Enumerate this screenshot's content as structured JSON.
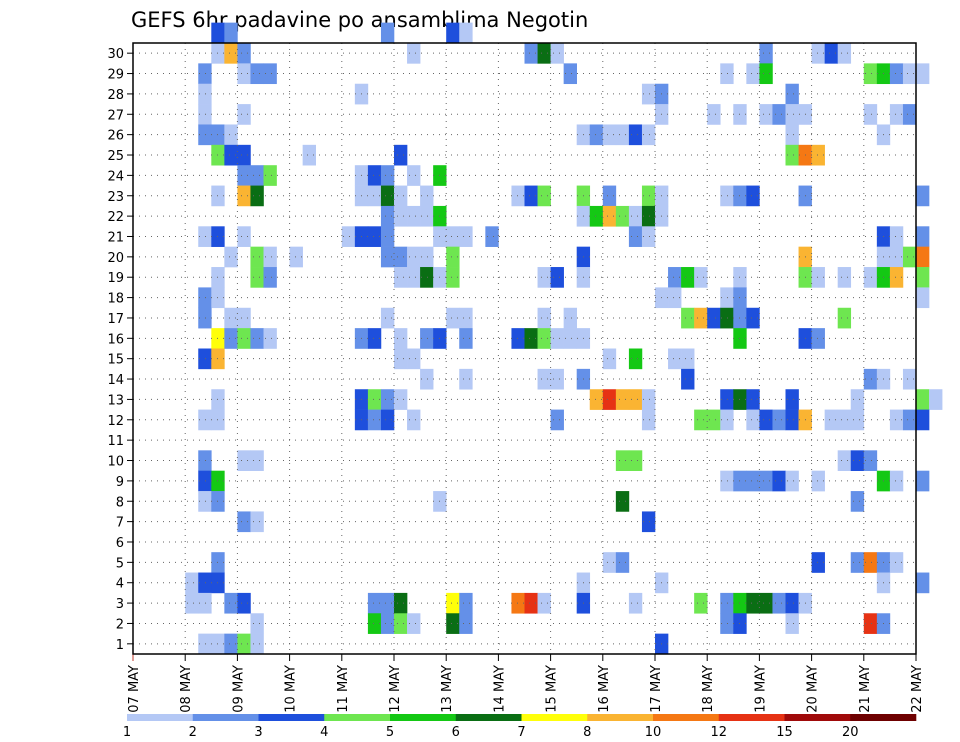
{
  "chart_data": {
    "type": "heatmap",
    "title": "GEFS 6hr padavine po ansamblima Negotin",
    "xlabel": "",
    "ylabel": "",
    "x_tick_labels": [
      "07 MAY",
      "08 MAY",
      "09 MAY",
      "10 MAY",
      "11 MAY",
      "12 MAY",
      "13 MAY",
      "14 MAY",
      "15 MAY",
      "16 MAY",
      "17 MAY",
      "18 MAY",
      "19 MAY",
      "20 MAY",
      "21 MAY",
      "22 MAY"
    ],
    "y_tick_labels": [
      "1",
      "2",
      "3",
      "4",
      "5",
      "6",
      "7",
      "8",
      "9",
      "10",
      "11",
      "12",
      "13",
      "14",
      "15",
      "16",
      "17",
      "18",
      "19",
      "20",
      "21",
      "22",
      "23",
      "24",
      "25",
      "26",
      "27",
      "28",
      "29",
      "30"
    ],
    "ylim": [
      0,
      30
    ],
    "xlim_steps": [
      0,
      60
    ],
    "steps_per_day": 4,
    "grid": true,
    "legend_placement": "bottom",
    "legend": {
      "labels": [
        "1",
        "2",
        "3",
        "4",
        "5",
        "6",
        "7",
        "8",
        "10",
        "12",
        "15",
        "20"
      ],
      "colors": [
        "#b4c8f5",
        "#6490e8",
        "#1e4fdc",
        "#6ee650",
        "#14c814",
        "#0a6e14",
        "#ffff0a",
        "#fab432",
        "#f57814",
        "#e63214",
        "#a00a0a",
        "#6e0000"
      ]
    },
    "color_bins": [
      {
        "min": 1,
        "max": 2,
        "color": "#b4c8f5"
      },
      {
        "min": 2,
        "max": 3,
        "color": "#6490e8"
      },
      {
        "min": 3,
        "max": 4,
        "color": "#1e4fdc"
      },
      {
        "min": 4,
        "max": 5,
        "color": "#6ee650"
      },
      {
        "min": 5,
        "max": 6,
        "color": "#14c814"
      },
      {
        "min": 6,
        "max": 7,
        "color": "#0a6e14"
      },
      {
        "min": 7,
        "max": 8,
        "color": "#ffff0a"
      },
      {
        "min": 8,
        "max": 10,
        "color": "#fab432"
      },
      {
        "min": 10,
        "max": 12,
        "color": "#f57814"
      },
      {
        "min": 12,
        "max": 15,
        "color": "#e63214"
      },
      {
        "min": 15,
        "max": 20,
        "color": "#a00a0a"
      },
      {
        "min": 20,
        "max": 30,
        "color": "#6e0000"
      }
    ],
    "cells": [
      [
        6,
        30,
        3
      ],
      [
        7,
        30,
        2
      ],
      [
        19,
        30,
        2
      ],
      [
        24,
        30,
        3
      ],
      [
        25,
        30,
        1
      ],
      [
        6,
        29,
        1
      ],
      [
        7,
        29,
        8
      ],
      [
        8,
        29,
        2
      ],
      [
        21,
        29,
        1
      ],
      [
        30,
        29,
        2
      ],
      [
        31,
        29,
        6
      ],
      [
        32,
        29,
        1
      ],
      [
        48,
        29,
        2
      ],
      [
        52,
        29,
        1
      ],
      [
        53,
        29,
        3
      ],
      [
        54,
        29,
        1
      ],
      [
        5,
        28,
        2
      ],
      [
        8,
        28,
        1
      ],
      [
        9,
        28,
        2
      ],
      [
        10,
        28,
        2
      ],
      [
        33,
        28,
        2
      ],
      [
        45,
        28,
        1
      ],
      [
        47,
        28,
        1
      ],
      [
        48,
        28,
        5
      ],
      [
        56,
        28,
        4
      ],
      [
        57,
        28,
        5
      ],
      [
        58,
        28,
        2
      ],
      [
        59,
        28,
        1
      ],
      [
        60,
        28,
        1
      ],
      [
        5,
        27,
        1
      ],
      [
        17,
        27,
        1
      ],
      [
        39,
        27,
        1
      ],
      [
        40,
        27,
        2
      ],
      [
        50,
        27,
        2
      ],
      [
        5,
        26,
        1
      ],
      [
        8,
        26,
        1
      ],
      [
        40,
        26,
        1
      ],
      [
        44,
        26,
        1
      ],
      [
        46,
        26,
        1
      ],
      [
        48,
        26,
        1
      ],
      [
        49,
        26,
        2
      ],
      [
        50,
        26,
        1
      ],
      [
        51,
        26,
        1
      ],
      [
        56,
        26,
        1
      ],
      [
        58,
        26,
        1
      ],
      [
        59,
        26,
        2
      ],
      [
        5,
        25,
        2
      ],
      [
        6,
        25,
        2
      ],
      [
        7,
        25,
        1
      ],
      [
        34,
        25,
        1
      ],
      [
        35,
        25,
        2
      ],
      [
        36,
        25,
        1
      ],
      [
        37,
        25,
        1
      ],
      [
        38,
        25,
        3
      ],
      [
        39,
        25,
        1
      ],
      [
        50,
        25,
        1
      ],
      [
        57,
        25,
        1
      ],
      [
        6,
        24,
        4
      ],
      [
        7,
        24,
        3
      ],
      [
        8,
        24,
        3
      ],
      [
        13,
        24,
        1
      ],
      [
        20,
        24,
        3
      ],
      [
        50,
        24,
        4
      ],
      [
        51,
        24,
        11
      ],
      [
        52,
        24,
        8
      ],
      [
        8,
        23,
        2
      ],
      [
        9,
        23,
        2
      ],
      [
        10,
        23,
        4
      ],
      [
        17,
        23,
        1
      ],
      [
        18,
        23,
        3
      ],
      [
        19,
        23,
        2
      ],
      [
        21,
        23,
        1
      ],
      [
        23,
        23,
        5
      ],
      [
        6,
        22,
        1
      ],
      [
        8,
        22,
        8
      ],
      [
        9,
        22,
        6
      ],
      [
        17,
        22,
        1
      ],
      [
        18,
        22,
        1
      ],
      [
        19,
        22,
        6
      ],
      [
        20,
        22,
        1
      ],
      [
        22,
        22,
        1
      ],
      [
        29,
        22,
        1
      ],
      [
        30,
        22,
        3
      ],
      [
        31,
        22,
        4
      ],
      [
        34,
        22,
        4
      ],
      [
        36,
        22,
        2
      ],
      [
        39,
        22,
        4
      ],
      [
        40,
        22,
        1
      ],
      [
        45,
        22,
        1
      ],
      [
        46,
        22,
        2
      ],
      [
        47,
        22,
        3
      ],
      [
        51,
        22,
        2
      ],
      [
        60,
        22,
        2
      ],
      [
        19,
        21,
        2
      ],
      [
        20,
        21,
        1
      ],
      [
        21,
        21,
        1
      ],
      [
        22,
        21,
        1
      ],
      [
        23,
        21,
        5
      ],
      [
        34,
        21,
        1
      ],
      [
        35,
        21,
        5
      ],
      [
        36,
        21,
        9
      ],
      [
        37,
        21,
        4
      ],
      [
        38,
        21,
        1
      ],
      [
        39,
        21,
        6
      ],
      [
        40,
        21,
        1
      ],
      [
        5,
        20,
        1
      ],
      [
        6,
        20,
        3
      ],
      [
        8,
        20,
        1
      ],
      [
        16,
        20,
        1
      ],
      [
        17,
        20,
        3
      ],
      [
        18,
        20,
        3
      ],
      [
        19,
        20,
        2
      ],
      [
        23,
        20,
        1
      ],
      [
        24,
        20,
        1
      ],
      [
        25,
        20,
        1
      ],
      [
        27,
        20,
        2
      ],
      [
        38,
        20,
        2
      ],
      [
        39,
        20,
        1
      ],
      [
        57,
        20,
        3
      ],
      [
        58,
        20,
        1
      ],
      [
        60,
        20,
        2
      ],
      [
        7,
        19,
        1
      ],
      [
        9,
        19,
        4
      ],
      [
        10,
        19,
        1
      ],
      [
        12,
        19,
        1
      ],
      [
        19,
        19,
        2
      ],
      [
        20,
        19,
        2
      ],
      [
        21,
        19,
        1
      ],
      [
        22,
        19,
        1
      ],
      [
        24,
        19,
        4
      ],
      [
        34,
        19,
        3
      ],
      [
        51,
        19,
        8
      ],
      [
        57,
        19,
        1
      ],
      [
        58,
        19,
        1
      ],
      [
        59,
        19,
        4
      ],
      [
        60,
        19,
        10
      ],
      [
        6,
        18,
        1
      ],
      [
        9,
        18,
        4
      ],
      [
        10,
        18,
        2
      ],
      [
        20,
        18,
        1
      ],
      [
        21,
        18,
        1
      ],
      [
        22,
        18,
        6
      ],
      [
        23,
        18,
        1
      ],
      [
        24,
        18,
        4
      ],
      [
        31,
        18,
        1
      ],
      [
        32,
        18,
        3
      ],
      [
        34,
        18,
        1
      ],
      [
        41,
        18,
        2
      ],
      [
        42,
        18,
        5
      ],
      [
        43,
        18,
        1
      ],
      [
        46,
        18,
        1
      ],
      [
        51,
        18,
        4
      ],
      [
        52,
        18,
        1
      ],
      [
        54,
        18,
        1
      ],
      [
        56,
        18,
        1
      ],
      [
        57,
        18,
        5
      ],
      [
        58,
        18,
        8
      ],
      [
        60,
        18,
        4
      ],
      [
        5,
        17,
        2
      ],
      [
        6,
        17,
        1
      ],
      [
        40,
        17,
        1
      ],
      [
        41,
        17,
        1
      ],
      [
        45,
        17,
        1
      ],
      [
        46,
        17,
        2
      ],
      [
        60,
        17,
        1
      ],
      [
        5,
        16,
        2
      ],
      [
        7,
        16,
        1
      ],
      [
        8,
        16,
        1
      ],
      [
        19,
        16,
        1
      ],
      [
        24,
        16,
        1
      ],
      [
        25,
        16,
        1
      ],
      [
        31,
        16,
        1
      ],
      [
        33,
        16,
        1
      ],
      [
        42,
        16,
        4
      ],
      [
        43,
        16,
        8
      ],
      [
        44,
        16,
        3
      ],
      [
        45,
        16,
        6
      ],
      [
        46,
        16,
        2
      ],
      [
        47,
        16,
        3
      ],
      [
        54,
        16,
        4
      ],
      [
        6,
        15,
        7
      ],
      [
        7,
        15,
        2
      ],
      [
        8,
        15,
        4
      ],
      [
        9,
        15,
        2
      ],
      [
        10,
        15,
        1
      ],
      [
        17,
        15,
        2
      ],
      [
        18,
        15,
        3
      ],
      [
        20,
        15,
        1
      ],
      [
        22,
        15,
        2
      ],
      [
        23,
        15,
        3
      ],
      [
        25,
        15,
        2
      ],
      [
        29,
        15,
        3
      ],
      [
        30,
        15,
        6
      ],
      [
        31,
        15,
        4
      ],
      [
        32,
        15,
        1
      ],
      [
        33,
        15,
        1
      ],
      [
        34,
        15,
        1
      ],
      [
        46,
        15,
        5
      ],
      [
        51,
        15,
        3
      ],
      [
        52,
        15,
        2
      ],
      [
        5,
        14,
        3
      ],
      [
        6,
        14,
        8
      ],
      [
        20,
        14,
        1
      ],
      [
        21,
        14,
        1
      ],
      [
        36,
        14,
        1
      ],
      [
        38,
        14,
        5
      ],
      [
        41,
        14,
        1
      ],
      [
        42,
        14,
        1
      ],
      [
        22,
        13,
        1
      ],
      [
        25,
        13,
        1
      ],
      [
        31,
        13,
        1
      ],
      [
        32,
        13,
        1
      ],
      [
        34,
        13,
        2
      ],
      [
        42,
        13,
        3
      ],
      [
        56,
        13,
        2
      ],
      [
        57,
        13,
        1
      ],
      [
        59,
        13,
        1
      ],
      [
        6,
        12,
        1
      ],
      [
        17,
        12,
        3
      ],
      [
        18,
        12,
        4
      ],
      [
        19,
        12,
        2
      ],
      [
        20,
        12,
        1
      ],
      [
        35,
        12,
        8
      ],
      [
        36,
        12,
        12
      ],
      [
        37,
        12,
        8
      ],
      [
        38,
        12,
        8
      ],
      [
        39,
        12,
        1
      ],
      [
        45,
        12,
        3
      ],
      [
        46,
        12,
        6
      ],
      [
        47,
        12,
        3
      ],
      [
        50,
        12,
        3
      ],
      [
        55,
        12,
        1
      ],
      [
        60,
        12,
        4
      ],
      [
        61,
        12,
        1
      ],
      [
        5,
        11,
        1
      ],
      [
        6,
        11,
        1
      ],
      [
        17,
        11,
        3
      ],
      [
        18,
        11,
        2
      ],
      [
        19,
        11,
        3
      ],
      [
        21,
        11,
        1
      ],
      [
        32,
        11,
        2
      ],
      [
        39,
        11,
        1
      ],
      [
        43,
        11,
        4
      ],
      [
        44,
        11,
        4
      ],
      [
        45,
        11,
        1
      ],
      [
        47,
        11,
        1
      ],
      [
        48,
        11,
        3
      ],
      [
        49,
        11,
        2
      ],
      [
        50,
        11,
        3
      ],
      [
        51,
        11,
        8
      ],
      [
        53,
        11,
        1
      ],
      [
        54,
        11,
        1
      ],
      [
        55,
        11,
        1
      ],
      [
        58,
        11,
        1
      ],
      [
        59,
        11,
        2
      ],
      [
        60,
        11,
        3
      ],
      [
        5,
        9,
        2
      ],
      [
        8,
        9,
        1
      ],
      [
        9,
        9,
        1
      ],
      [
        37,
        9,
        4
      ],
      [
        38,
        9,
        4
      ],
      [
        54,
        9,
        1
      ],
      [
        55,
        9,
        3
      ],
      [
        56,
        9,
        2
      ],
      [
        5,
        8,
        3
      ],
      [
        6,
        8,
        5
      ],
      [
        45,
        8,
        1
      ],
      [
        46,
        8,
        2
      ],
      [
        47,
        8,
        2
      ],
      [
        48,
        8,
        2
      ],
      [
        49,
        8,
        3
      ],
      [
        50,
        8,
        1
      ],
      [
        52,
        8,
        1
      ],
      [
        57,
        8,
        5
      ],
      [
        58,
        8,
        1
      ],
      [
        60,
        8,
        2
      ],
      [
        5,
        7,
        1
      ],
      [
        6,
        7,
        2
      ],
      [
        23,
        7,
        1
      ],
      [
        37,
        7,
        6
      ],
      [
        55,
        7,
        2
      ],
      [
        8,
        6,
        2
      ],
      [
        9,
        6,
        1
      ],
      [
        39,
        6,
        3
      ],
      [
        6,
        4,
        2
      ],
      [
        36,
        4,
        1
      ],
      [
        37,
        4,
        2
      ],
      [
        52,
        4,
        3
      ],
      [
        55,
        4,
        2
      ],
      [
        56,
        4,
        10
      ],
      [
        57,
        4,
        2
      ],
      [
        58,
        4,
        1
      ],
      [
        4,
        3,
        1
      ],
      [
        5,
        3,
        3
      ],
      [
        6,
        3,
        3
      ],
      [
        34,
        3,
        1
      ],
      [
        40,
        3,
        1
      ],
      [
        57,
        3,
        1
      ],
      [
        60,
        3,
        2
      ],
      [
        4,
        2,
        1
      ],
      [
        5,
        2,
        1
      ],
      [
        7,
        2,
        2
      ],
      [
        8,
        2,
        3
      ],
      [
        18,
        2,
        2
      ],
      [
        19,
        2,
        2
      ],
      [
        20,
        2,
        6
      ],
      [
        24,
        2,
        7
      ],
      [
        25,
        2,
        2
      ],
      [
        29,
        2,
        10
      ],
      [
        30,
        2,
        12
      ],
      [
        31,
        2,
        1
      ],
      [
        34,
        2,
        3
      ],
      [
        38,
        2,
        1
      ],
      [
        43,
        2,
        4
      ],
      [
        45,
        2,
        2
      ],
      [
        46,
        2,
        5
      ],
      [
        47,
        2,
        6
      ],
      [
        48,
        2,
        6
      ],
      [
        49,
        2,
        2
      ],
      [
        50,
        2,
        3
      ],
      [
        51,
        2,
        1
      ],
      [
        9,
        1,
        1
      ],
      [
        18,
        1,
        5
      ],
      [
        19,
        1,
        2
      ],
      [
        20,
        1,
        4
      ],
      [
        21,
        1,
        1
      ],
      [
        24,
        1,
        6
      ],
      [
        25,
        1,
        2
      ],
      [
        45,
        1,
        2
      ],
      [
        46,
        1,
        3
      ],
      [
        50,
        1,
        1
      ],
      [
        56,
        1,
        12
      ],
      [
        57,
        1,
        2
      ],
      [
        5,
        0,
        1
      ],
      [
        6,
        0,
        1
      ],
      [
        7,
        0,
        2
      ],
      [
        8,
        0,
        4
      ],
      [
        9,
        0,
        1
      ],
      [
        40,
        0,
        3
      ]
    ]
  }
}
